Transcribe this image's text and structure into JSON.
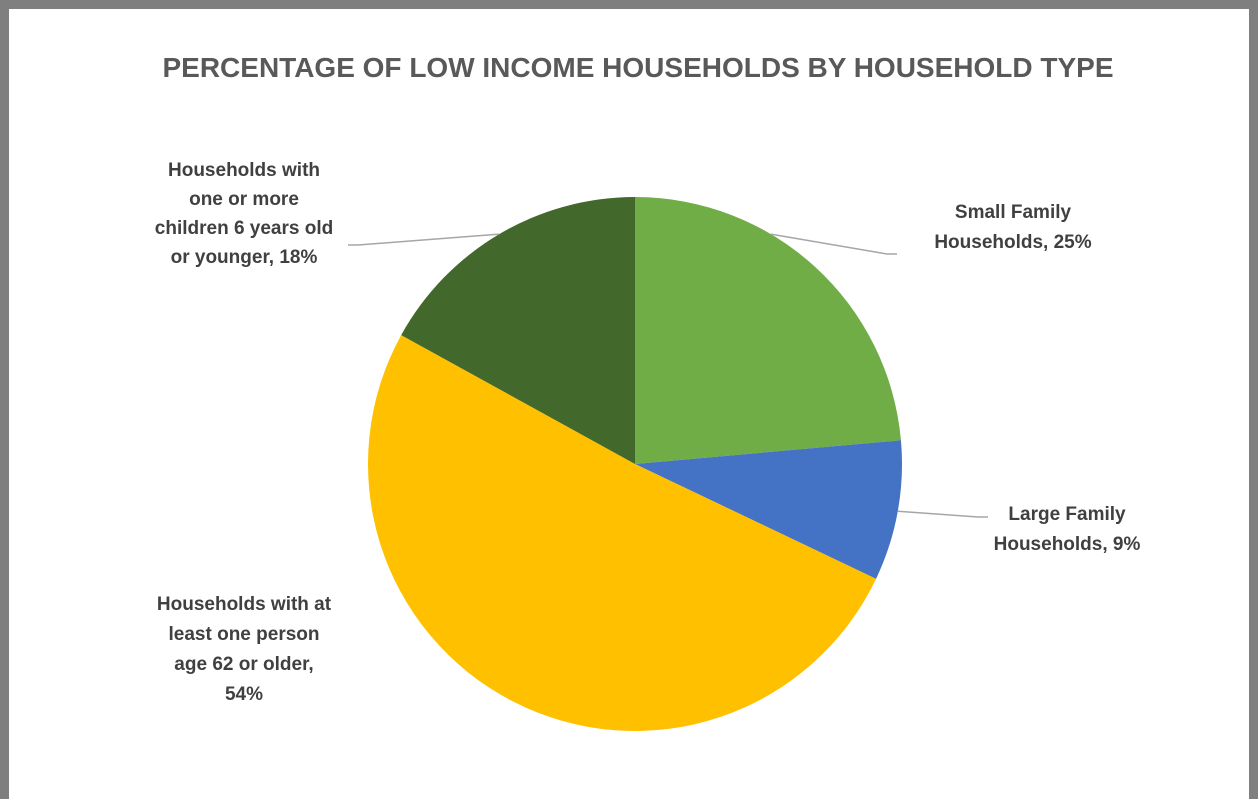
{
  "chart_data": {
    "type": "pie",
    "title": "PERCENTAGE OF LOW INCOME HOUSEHOLDS BY HOUSEHOLD TYPE",
    "slices": [
      {
        "name": "Small Family Households",
        "value": 25,
        "label": "25%",
        "color": "#70ad47",
        "label_lines": [
          "Small Family",
          "Households, 25%"
        ]
      },
      {
        "name": "Large Family Households",
        "value": 9,
        "label": "9%",
        "color": "#4472c4",
        "label_lines": [
          "Large Family",
          "Households, 9%"
        ]
      },
      {
        "name": "Households with at least one person age 62 or older",
        "value": 54,
        "label": "54%",
        "color": "#ffc000",
        "label_lines": [
          "Households with at",
          "least one person",
          "age 62 or older,",
          "54%"
        ]
      },
      {
        "name": "Households with one or more children 6 years old or younger",
        "value": 18,
        "label": "18%",
        "color": "#43682b",
        "label_lines": [
          "Households with",
          "one or more",
          "children 6 years old",
          "or younger, 18%"
        ]
      }
    ],
    "legend": "none",
    "data_labels": "outside with leader lines"
  }
}
